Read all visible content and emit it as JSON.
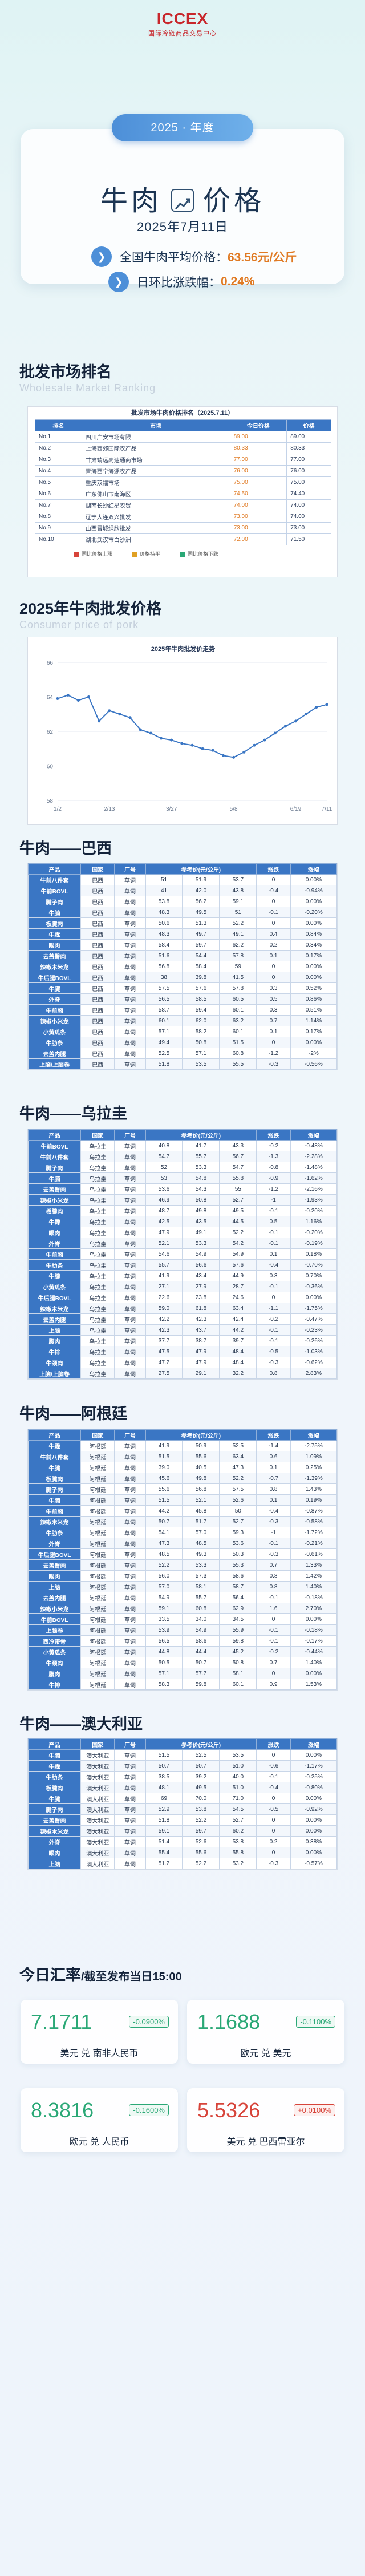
{
  "header": {
    "logo_main": "ICCEX",
    "logo_sub": "国际冷链商品交易中心",
    "year_pill": "2025 · 年度",
    "title_left": "牛肉",
    "title_right": "价格",
    "date": "2025年7月11日",
    "avg_label": "全国牛肉平均价格：",
    "avg_value": "63.56元/公斤",
    "dod_label": "日环比涨跌幅：",
    "dod_value": "0.24%"
  },
  "ranking": {
    "title": "批发市场排名",
    "subtitle": "Wholesale Market Ranking",
    "caption": "批发市场牛肉价格排名（2025.7.11）",
    "headers": [
      "排名",
      "市场",
      "今日价格",
      "价格"
    ],
    "rows": [
      [
        "No.1",
        "四川广安市场有限",
        "89.00",
        "89.00"
      ],
      [
        "No.2",
        "上海西郊国际农产品",
        "80.33",
        "80.33"
      ],
      [
        "No.3",
        "甘肃靖远高速通商市场",
        "77.00",
        "77.00"
      ],
      [
        "No.4",
        "青海西宁海湖农产品",
        "76.00",
        "76.00"
      ],
      [
        "No.5",
        "重庆双福市场",
        "75.00",
        "75.00"
      ],
      [
        "No.6",
        "广东佛山市南海区",
        "74.50",
        "74.40"
      ],
      [
        "No.7",
        "湖南长沙红星农贸",
        "74.00",
        "74.00"
      ],
      [
        "No.8",
        "辽宁大连双兴批发",
        "73.00",
        "74.00"
      ],
      [
        "No.9",
        "山西晋城绿欣批发",
        "73.00",
        "73.00"
      ],
      [
        "No.10",
        "湖北武汉市白沙洲",
        "72.00",
        "71.50"
      ]
    ],
    "legend": [
      "同比价格上涨",
      "价格持平",
      "同比价格下跌"
    ]
  },
  "price_trend": {
    "title": "2025年牛肉批发价格",
    "subtitle": "Consumer price of pork",
    "chart_caption": "2025年牛肉批发价走势"
  },
  "chart_data": {
    "type": "line",
    "title": "2025年牛肉批发价走势",
    "xlabel": "",
    "ylabel": "",
    "ylim": [
      58,
      66
    ],
    "grid": true,
    "x": [
      "1/2",
      "1/9",
      "1/16",
      "1/23",
      "2/6",
      "2/13",
      "2/20",
      "2/27",
      "3/6",
      "3/13",
      "3/20",
      "3/27",
      "4/3",
      "4/10",
      "4/17",
      "4/24",
      "5/1",
      "5/8",
      "5/15",
      "5/22",
      "5/29",
      "6/5",
      "6/12",
      "6/19",
      "6/26",
      "7/3",
      "7/11"
    ],
    "values": [
      63.9,
      64.1,
      63.8,
      64.0,
      62.6,
      63.2,
      63.0,
      62.8,
      62.1,
      61.9,
      61.6,
      61.5,
      61.3,
      61.2,
      61.0,
      60.9,
      60.6,
      60.5,
      60.8,
      61.2,
      61.5,
      61.9,
      62.3,
      62.6,
      63.0,
      63.4,
      63.56
    ],
    "x_labels": [
      "1/2",
      "2/13",
      "3/27",
      "5/8",
      "6/19",
      "7/11"
    ]
  },
  "tables": [
    {
      "title": "牛肉——巴西",
      "headers": [
        "产品",
        "国家",
        "厂号",
        "参考价(元/公斤)",
        "",
        "",
        "涨跌",
        "涨幅"
      ],
      "rows": [
        [
          "牛前八件套",
          "巴西",
          "草饲",
          "51",
          "51.9",
          "53.7",
          "0",
          "0.00%"
        ],
        [
          "牛前BOVL",
          "巴西",
          "草饲",
          "41",
          "42.0",
          "43.8",
          "-0.4",
          "-0.94%"
        ],
        [
          "腱子肉",
          "巴西",
          "草饲",
          "53.8",
          "56.2",
          "59.1",
          "0",
          "0.00%"
        ],
        [
          "牛腩",
          "巴西",
          "草饲",
          "48.3",
          "49.5",
          "51",
          "-0.1",
          "-0.20%"
        ],
        [
          "板腱肉",
          "巴西",
          "草饲",
          "50.6",
          "51.3",
          "52.2",
          "0",
          "0.00%"
        ],
        [
          "牛霖",
          "巴西",
          "草饲",
          "48.3",
          "49.7",
          "49.1",
          "0.4",
          "0.84%"
        ],
        [
          "眼肉",
          "巴西",
          "草饲",
          "58.4",
          "59.7",
          "62.2",
          "0.2",
          "0.34%"
        ],
        [
          "去盖臀肉",
          "巴西",
          "草饲",
          "51.6",
          "54.4",
          "57.8",
          "0.1",
          "0.17%"
        ],
        [
          "辣椒木米龙",
          "巴西",
          "草饲",
          "56.8",
          "58.4",
          "59",
          "0",
          "0.00%"
        ],
        [
          "牛后腿BOVL",
          "巴西",
          "草饲",
          "38",
          "39.8",
          "41.5",
          "0",
          "0.00%"
        ],
        [
          "牛腱",
          "巴西",
          "草饲",
          "57.5",
          "57.6",
          "57.8",
          "0.3",
          "0.52%"
        ],
        [
          "外脊",
          "巴西",
          "草饲",
          "56.5",
          "58.5",
          "60.5",
          "0.5",
          "0.86%"
        ],
        [
          "牛前胸",
          "巴西",
          "草饲",
          "58.7",
          "59.4",
          "60.1",
          "0.3",
          "0.51%"
        ],
        [
          "辣椒小米龙",
          "巴西",
          "草饲",
          "60.1",
          "62.0",
          "63.2",
          "0.7",
          "1.14%"
        ],
        [
          "小黄瓜条",
          "巴西",
          "草饲",
          "57.1",
          "58.2",
          "60.1",
          "0.1",
          "0.17%"
        ],
        [
          "牛肋条",
          "巴西",
          "草饲",
          "49.4",
          "50.8",
          "51.5",
          "0",
          "0.00%"
        ],
        [
          "去盖内腿",
          "巴西",
          "草饲",
          "52.5",
          "57.1",
          "60.8",
          "-1.2",
          "-2%"
        ],
        [
          "上脑/上脑卷",
          "巴西",
          "草饲",
          "51.8",
          "53.5",
          "55.5",
          "-0.3",
          "-0.56%"
        ]
      ]
    },
    {
      "title": "牛肉——乌拉圭",
      "headers": [
        "产品",
        "国家",
        "厂号",
        "参考价(元/公斤)",
        "",
        "",
        "涨跌",
        "涨幅"
      ],
      "rows": [
        [
          "牛前BOVL",
          "乌拉圭",
          "草饲",
          "40.8",
          "41.7",
          "43.3",
          "-0.2",
          "-0.48%"
        ],
        [
          "牛前八件套",
          "乌拉圭",
          "草饲",
          "54.7",
          "55.7",
          "56.7",
          "-1.3",
          "-2.28%"
        ],
        [
          "腱子肉",
          "乌拉圭",
          "草饲",
          "52",
          "53.3",
          "54.7",
          "-0.8",
          "-1.48%"
        ],
        [
          "牛腩",
          "乌拉圭",
          "草饲",
          "53",
          "54.8",
          "55.8",
          "-0.9",
          "-1.62%"
        ],
        [
          "去盖臀肉",
          "乌拉圭",
          "草饲",
          "53.6",
          "54.3",
          "55",
          "-1.2",
          "-2.16%"
        ],
        [
          "辣椒小米龙",
          "乌拉圭",
          "草饲",
          "46.9",
          "50.8",
          "52.7",
          "-1",
          "-1.93%"
        ],
        [
          "板腱肉",
          "乌拉圭",
          "草饲",
          "48.7",
          "49.8",
          "49.5",
          "-0.1",
          "-0.20%"
        ],
        [
          "牛霖",
          "乌拉圭",
          "草饲",
          "42.5",
          "43.5",
          "44.5",
          "0.5",
          "1.16%"
        ],
        [
          "眼肉",
          "乌拉圭",
          "草饲",
          "47.9",
          "49.1",
          "52.2",
          "-0.1",
          "-0.20%"
        ],
        [
          "外脊",
          "乌拉圭",
          "草饲",
          "52.1",
          "53.3",
          "54.2",
          "-0.1",
          "-0.19%"
        ],
        [
          "牛前胸",
          "乌拉圭",
          "草饲",
          "54.6",
          "54.9",
          "54.9",
          "0.1",
          "0.18%"
        ],
        [
          "牛肋条",
          "乌拉圭",
          "草饲",
          "55.7",
          "56.6",
          "57.6",
          "-0.4",
          "-0.70%"
        ],
        [
          "牛腱",
          "乌拉圭",
          "草饲",
          "41.9",
          "43.4",
          "44.9",
          "0.3",
          "0.70%"
        ],
        [
          "小黄瓜条",
          "乌拉圭",
          "草饲",
          "27.1",
          "27.9",
          "28.7",
          "-0.1",
          "-0.36%"
        ],
        [
          "牛后腿BOVL",
          "乌拉圭",
          "草饲",
          "22.6",
          "23.8",
          "24.6",
          "0",
          "0.00%"
        ],
        [
          "辣椒木米龙",
          "乌拉圭",
          "草饲",
          "59.0",
          "61.8",
          "63.4",
          "-1.1",
          "-1.75%"
        ],
        [
          "去盖内腿",
          "乌拉圭",
          "草饲",
          "42.2",
          "42.3",
          "42.4",
          "-0.2",
          "-0.47%"
        ],
        [
          "上脑",
          "乌拉圭",
          "草饲",
          "42.3",
          "43.7",
          "44.2",
          "-0.1",
          "-0.23%"
        ],
        [
          "腹肉",
          "乌拉圭",
          "草饲",
          "37.7",
          "38.7",
          "39.7",
          "-0.1",
          "-0.26%"
        ],
        [
          "牛排",
          "乌拉圭",
          "草饲",
          "47.5",
          "47.9",
          "48.4",
          "-0.5",
          "-1.03%"
        ],
        [
          "牛颈肉",
          "乌拉圭",
          "草饲",
          "47.2",
          "47.9",
          "48.4",
          "-0.3",
          "-0.62%"
        ],
        [
          "上脑/上脑卷",
          "乌拉圭",
          "草饲",
          "27.5",
          "29.1",
          "32.2",
          "0.8",
          "2.83%"
        ]
      ]
    },
    {
      "title": "牛肉——阿根廷",
      "headers": [
        "产品",
        "国家",
        "厂号",
        "参考价(元/公斤)",
        "",
        "",
        "涨跌",
        "涨幅"
      ],
      "rows": [
        [
          "牛霖",
          "阿根廷",
          "草饲",
          "41.9",
          "50.9",
          "52.5",
          "-1.4",
          "-2.75%"
        ],
        [
          "牛前八件套",
          "阿根廷",
          "草饲",
          "51.5",
          "55.6",
          "63.4",
          "0.6",
          "1.09%"
        ],
        [
          "牛腱",
          "阿根廷",
          "草饲",
          "39.0",
          "40.5",
          "47.3",
          "0.1",
          "0.25%"
        ],
        [
          "板腱肉",
          "阿根廷",
          "草饲",
          "45.6",
          "49.8",
          "52.2",
          "-0.7",
          "-1.39%"
        ],
        [
          "腱子肉",
          "阿根廷",
          "草饲",
          "55.6",
          "56.8",
          "57.5",
          "0.8",
          "1.43%"
        ],
        [
          "牛腩",
          "阿根廷",
          "草饲",
          "51.5",
          "52.1",
          "52.6",
          "0.1",
          "0.19%"
        ],
        [
          "牛前胸",
          "阿根廷",
          "草饲",
          "44.2",
          "45.8",
          "50",
          "-0.4",
          "-0.87%"
        ],
        [
          "辣椒木米龙",
          "阿根廷",
          "草饲",
          "50.7",
          "51.7",
          "52.7",
          "-0.3",
          "-0.58%"
        ],
        [
          "牛肋条",
          "阿根廷",
          "草饲",
          "54.1",
          "57.0",
          "59.3",
          "-1",
          "-1.72%"
        ],
        [
          "外脊",
          "阿根廷",
          "草饲",
          "47.3",
          "48.5",
          "53.6",
          "-0.1",
          "-0.21%"
        ],
        [
          "牛后腿BOVL",
          "阿根廷",
          "草饲",
          "48.5",
          "49.3",
          "50.3",
          "-0.3",
          "-0.61%"
        ],
        [
          "去盖臀肉",
          "阿根廷",
          "草饲",
          "52.2",
          "53.3",
          "55.3",
          "0.7",
          "1.33%"
        ],
        [
          "眼肉",
          "阿根廷",
          "草饲",
          "56.0",
          "57.3",
          "58.6",
          "0.8",
          "1.42%"
        ],
        [
          "上脑",
          "阿根廷",
          "草饲",
          "57.0",
          "58.1",
          "58.7",
          "0.8",
          "1.40%"
        ],
        [
          "去盖内腿",
          "阿根廷",
          "草饲",
          "54.9",
          "55.7",
          "56.4",
          "-0.1",
          "-0.18%"
        ],
        [
          "辣椒小米龙",
          "阿根廷",
          "草饲",
          "59.1",
          "60.8",
          "62.9",
          "1.6",
          "2.70%"
        ],
        [
          "牛前BOVL",
          "阿根廷",
          "草饲",
          "33.5",
          "34.0",
          "34.5",
          "0",
          "0.00%"
        ],
        [
          "上脑卷",
          "阿根廷",
          "草饲",
          "53.9",
          "54.9",
          "55.9",
          "-0.1",
          "-0.18%"
        ],
        [
          "西冷带骨",
          "阿根廷",
          "草饲",
          "56.5",
          "58.6",
          "59.8",
          "-0.1",
          "-0.17%"
        ],
        [
          "小黄瓜条",
          "阿根廷",
          "草饲",
          "44.8",
          "44.4",
          "45.2",
          "-0.2",
          "-0.44%"
        ],
        [
          "牛颈肉",
          "阿根廷",
          "草饲",
          "50.5",
          "50.7",
          "50.8",
          "0.7",
          "1.40%"
        ],
        [
          "腹肉",
          "阿根廷",
          "草饲",
          "57.1",
          "57.7",
          "58.1",
          "0",
          "0.00%"
        ],
        [
          "牛排",
          "阿根廷",
          "草饲",
          "58.3",
          "59.8",
          "60.1",
          "0.9",
          "1.53%"
        ]
      ]
    },
    {
      "title": "牛肉——澳大利亚",
      "headers": [
        "产品",
        "国家",
        "厂号",
        "参考价(元/公斤)",
        "",
        "",
        "涨跌",
        "涨幅"
      ],
      "rows": [
        [
          "牛腩",
          "澳大利亚",
          "草饲",
          "51.5",
          "52.5",
          "53.5",
          "0",
          "0.00%"
        ],
        [
          "牛霖",
          "澳大利亚",
          "草饲",
          "50.7",
          "50.7",
          "51.0",
          "-0.6",
          "-1.17%"
        ],
        [
          "牛肋条",
          "澳大利亚",
          "草饲",
          "38.5",
          "39.2",
          "40.0",
          "-0.1",
          "-0.25%"
        ],
        [
          "板腱肉",
          "澳大利亚",
          "草饲",
          "48.1",
          "49.5",
          "51.0",
          "-0.4",
          "-0.80%"
        ],
        [
          "牛腱",
          "澳大利亚",
          "草饲",
          "69",
          "70.0",
          "71.0",
          "0",
          "0.00%"
        ],
        [
          "腱子肉",
          "澳大利亚",
          "草饲",
          "52.9",
          "53.8",
          "54.5",
          "-0.5",
          "-0.92%"
        ],
        [
          "去盖臀肉",
          "澳大利亚",
          "草饲",
          "51.8",
          "52.2",
          "52.7",
          "0",
          "0.00%"
        ],
        [
          "辣椒木米龙",
          "澳大利亚",
          "草饲",
          "59.1",
          "59.7",
          "60.2",
          "0",
          "0.00%"
        ],
        [
          "外脊",
          "澳大利亚",
          "草饲",
          "51.4",
          "52.6",
          "53.8",
          "0.2",
          "0.38%"
        ],
        [
          "眼肉",
          "澳大利亚",
          "草饲",
          "55.4",
          "55.6",
          "55.8",
          "0",
          "0.00%"
        ],
        [
          "上脑",
          "澳大利亚",
          "草饲",
          "51.2",
          "52.2",
          "53.2",
          "-0.3",
          "-0.57%"
        ]
      ]
    }
  ],
  "fx": {
    "title": "今日汇率",
    "subtitle": "/截至发布当日15:00",
    "cards": [
      {
        "value": "7.1711",
        "change": "-0.0900%",
        "label": "美元 兑 南非人民币",
        "dir": "down"
      },
      {
        "value": "1.1688",
        "change": "-0.1100%",
        "label": "欧元 兑 美元",
        "dir": "down"
      },
      {
        "value": "8.3816",
        "change": "-0.1600%",
        "label": "欧元 兑 人民币",
        "dir": "down"
      },
      {
        "value": "5.5326",
        "change": "+0.0100%",
        "label": "美元 兑 巴西雷亚尔",
        "dir": "up"
      }
    ]
  }
}
